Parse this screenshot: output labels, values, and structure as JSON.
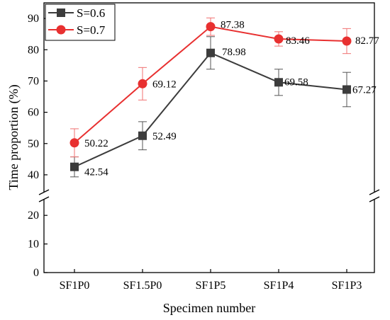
{
  "chart_data": {
    "type": "line",
    "xlabel": "Specimen number",
    "ylabel": "Time proportion (%)",
    "categories": [
      "SF1P0",
      "SF1.5P0",
      "SF1P5",
      "SF1P4",
      "SF1P3"
    ],
    "y_axis": {
      "broken": true,
      "lower_range": [
        0,
        25
      ],
      "upper_range": [
        35,
        95
      ],
      "lower_ticks": [
        0,
        10,
        20
      ],
      "upper_ticks": [
        40,
        50,
        60,
        70,
        80,
        90
      ]
    },
    "grid": false,
    "legend_position": "top-left",
    "series": [
      {
        "name": "S=0.6",
        "color": "#3c3c3c",
        "marker": "square",
        "values": [
          42.54,
          52.49,
          78.98,
          69.58,
          67.27
        ],
        "labels": [
          "42.54",
          "52.49",
          "78.98",
          "69.58",
          "67.27"
        ],
        "error": [
          3.2,
          4.5,
          5.2,
          4.2,
          5.5
        ]
      },
      {
        "name": "S=0.7",
        "color": "#e83030",
        "marker": "circle",
        "values": [
          50.22,
          69.12,
          87.38,
          83.46,
          82.77
        ],
        "labels": [
          "50.22",
          "69.12",
          "87.38",
          "83.46",
          "82.77"
        ],
        "error": [
          4.5,
          5.2,
          2.8,
          2.3,
          4.0
        ]
      }
    ]
  }
}
